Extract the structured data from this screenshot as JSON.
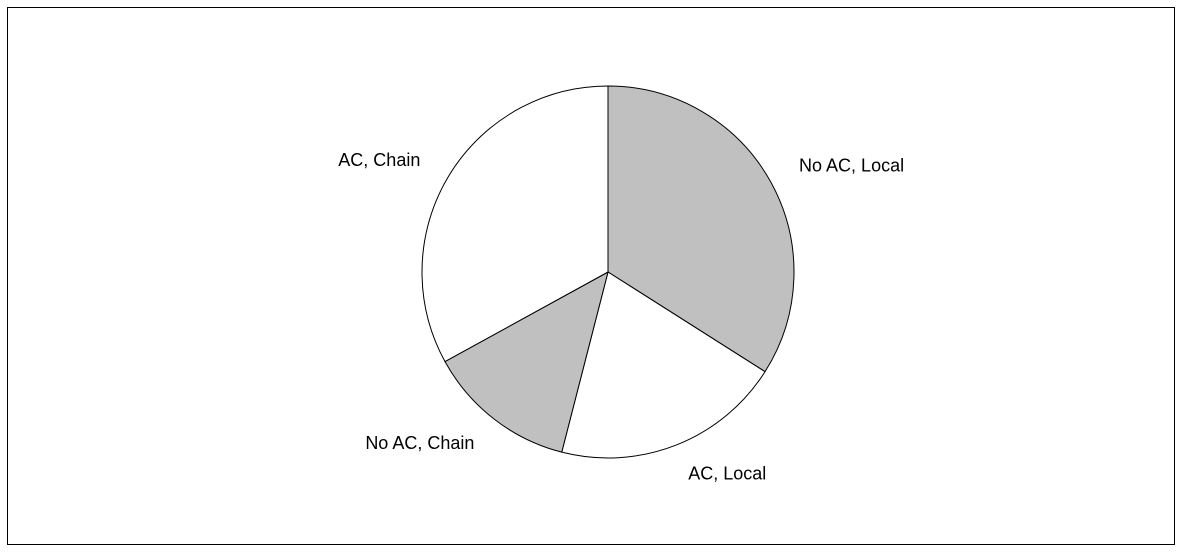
{
  "chart_data": {
    "type": "pie",
    "categories": [
      "No AC, Local",
      "AC, Local",
      "No AC, Chain",
      "AC, Chain"
    ],
    "values": [
      34,
      20,
      13,
      33
    ],
    "colors": [
      "#c0c0c0",
      "#ffffff",
      "#c0c0c0",
      "#ffffff"
    ]
  }
}
